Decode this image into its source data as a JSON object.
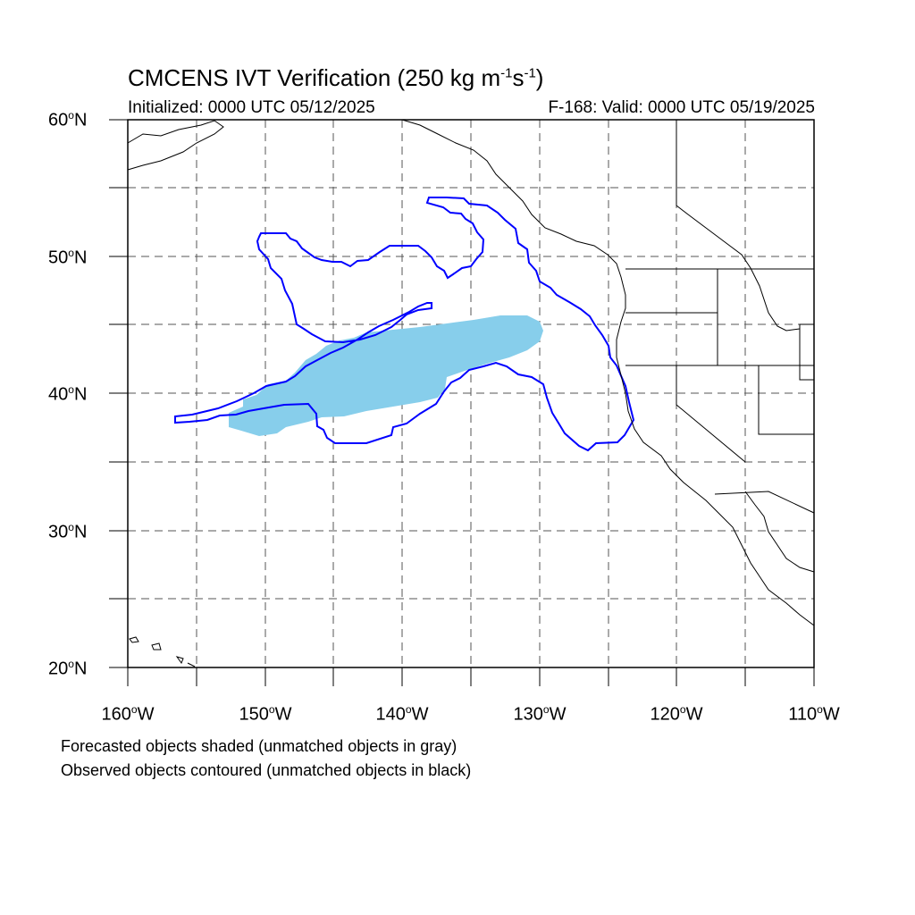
{
  "title": {
    "main": "CMCENS IVT Verification (250 kg m",
    "exp1": "-1",
    "mid": "s",
    "exp2": "-1",
    "close": ")"
  },
  "initialized_label": "Initialized: 0000 UTC 05/12/2025",
  "valid_label": "F-168: Valid: 0000 UTC 05/19/2025",
  "lat_labels": [
    {
      "deg": "60",
      "hemi": "N"
    },
    {
      "deg": "50",
      "hemi": "N"
    },
    {
      "deg": "40",
      "hemi": "N"
    },
    {
      "deg": "30",
      "hemi": "N"
    },
    {
      "deg": "20",
      "hemi": "N"
    }
  ],
  "lon_labels": [
    {
      "deg": "160",
      "hemi": "W"
    },
    {
      "deg": "150",
      "hemi": "W"
    },
    {
      "deg": "140",
      "hemi": "W"
    },
    {
      "deg": "130",
      "hemi": "W"
    },
    {
      "deg": "120",
      "hemi": "W"
    },
    {
      "deg": "110",
      "hemi": "W"
    }
  ],
  "legend": {
    "line1": "Forecasted objects shaded (unmatched objects in gray)",
    "line2": "Observed objects contoured (unmatched objects in black)"
  },
  "colors": {
    "forecast_fill": "#87ceeb",
    "observed_contour": "#0000ff",
    "coastline": "#000000",
    "grid": "#555555"
  },
  "map_extent": {
    "lon_min": -160,
    "lon_max": -110,
    "lat_min": 20,
    "lat_max": 60
  }
}
